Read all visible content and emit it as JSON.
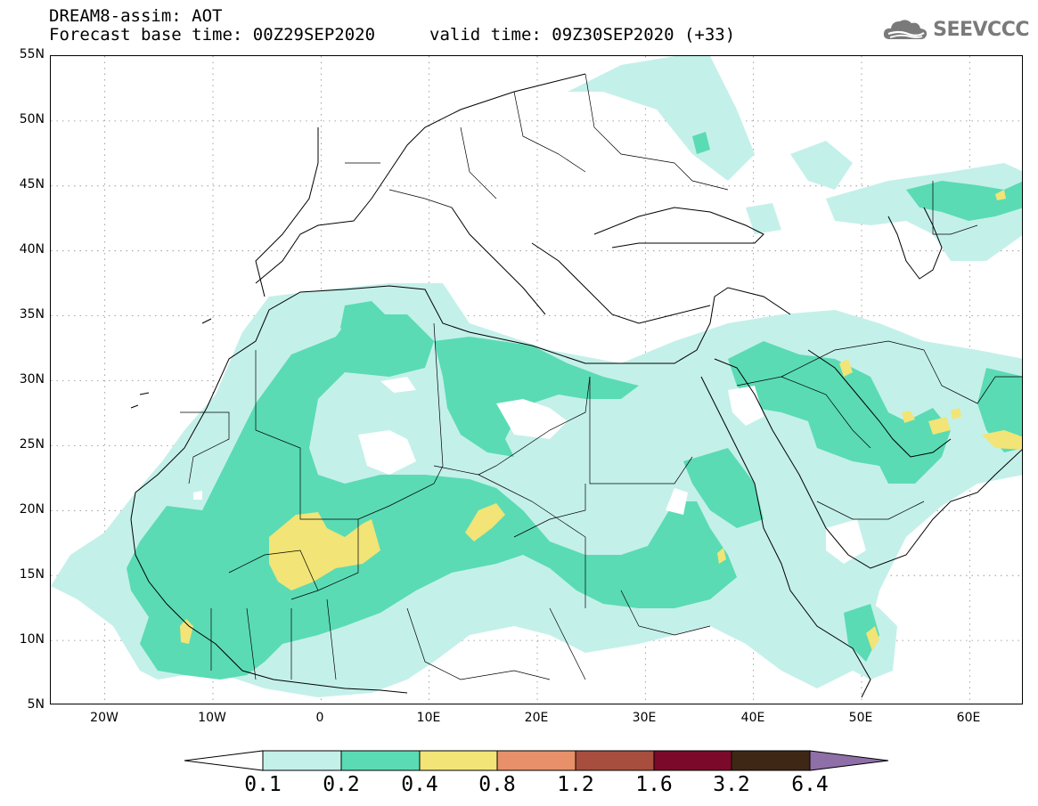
{
  "header": {
    "title_line1": "DREAM8-assim: AOT",
    "title_line2": "Forecast base time: 00Z29SEP2020",
    "valid_time": "valid time: 09Z30SEP2020 (+33)"
  },
  "logo": {
    "text": "SEEVCCC",
    "icon": "cloud-icon"
  },
  "axes": {
    "lat_labels": [
      "55N",
      "50N",
      "45N",
      "40N",
      "35N",
      "30N",
      "25N",
      "20N",
      "15N",
      "10N",
      "5N"
    ],
    "lon_labels": [
      "20W",
      "10W",
      "0",
      "10E",
      "20E",
      "30E",
      "40E",
      "50E",
      "60E"
    ],
    "lon_range": [
      -25,
      65
    ],
    "lat_range": [
      5,
      55
    ],
    "grid": true
  },
  "colorbar": {
    "levels": [
      "0.1",
      "0.2",
      "0.4",
      "0.8",
      "1.2",
      "1.6",
      "3.2",
      "6.4"
    ],
    "colors": [
      "#ffffff",
      "#c4f0ea",
      "#5adbb4",
      "#f2e476",
      "#e8906a",
      "#a84e3e",
      "#7b0a2a",
      "#3e2815",
      "#8f6fa8"
    ]
  }
}
